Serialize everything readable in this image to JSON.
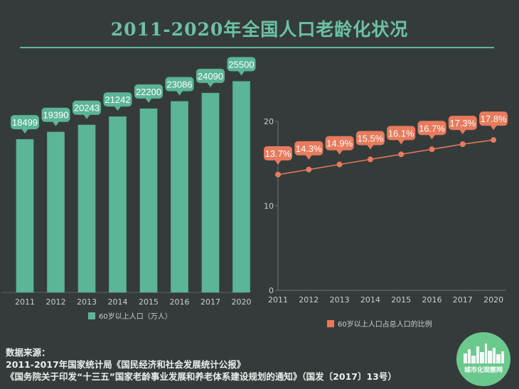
{
  "title": "2011-2020年全国人口老龄化状况",
  "chart_data": [
    {
      "type": "bar",
      "categories": [
        "2011",
        "2012",
        "2013",
        "2014",
        "2015",
        "2016",
        "2017",
        "2020"
      ],
      "series": [
        {
          "name": "60岁以上人口（万人）",
          "values": [
            18499,
            19390,
            20243,
            21242,
            22200,
            23086,
            24090,
            25500
          ]
        }
      ],
      "data_labels": [
        "18499",
        "19390",
        "20243",
        "21242",
        "22200",
        "23086",
        "24090",
        "25500"
      ],
      "ylim": [
        0,
        30000
      ],
      "grid": false,
      "legend": "bottom",
      "color": "#5bb596"
    },
    {
      "type": "line",
      "categories": [
        "2011",
        "2012",
        "2013",
        "2014",
        "2015",
        "2016",
        "2017",
        "2020"
      ],
      "series": [
        {
          "name": "60岁以上人口占总人口的比例",
          "values": [
            13.7,
            14.3,
            14.9,
            15.5,
            16.1,
            16.7,
            17.3,
            17.8
          ]
        }
      ],
      "data_labels": [
        "13.7%",
        "14.3%",
        "14.9%",
        "15.5%",
        "16.1%",
        "16.7%",
        "17.3%",
        "17.8%"
      ],
      "y_ticks": [
        "0",
        "10",
        "20"
      ],
      "ylim": [
        0,
        20
      ],
      "grid": false,
      "legend": "bottom",
      "color": "#e97a5d"
    }
  ],
  "source": {
    "heading": "数据来源：",
    "line1": "2011-2017年国家统计局《国民经济和社会发展统计公报》",
    "line2": "《国务院关于印发“十三五”国家老龄事业发展和养老体系建设规划的通知》（国发〔2017〕13号）"
  },
  "logo": {
    "text": "城市化观察网"
  }
}
